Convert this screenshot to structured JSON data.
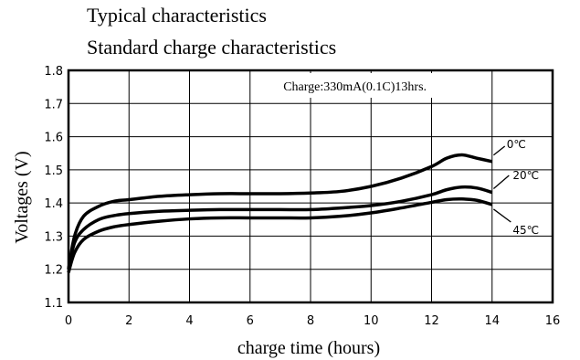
{
  "header": {
    "line1": "Typical characteristics",
    "line2": "Standard charge characteristics"
  },
  "chart_data": {
    "type": "line",
    "xlabel": "charge time (hours)",
    "ylabel": "Voltages (V)",
    "xlim": [
      0,
      16
    ],
    "ylim": [
      1.1,
      1.8
    ],
    "xticks": [
      0,
      2,
      4,
      6,
      8,
      10,
      12,
      14,
      16
    ],
    "yticks": [
      1.1,
      1.2,
      1.3,
      1.4,
      1.5,
      1.6,
      1.7,
      1.8
    ],
    "ytick_labels": [
      "1.1",
      "1.2",
      "1.3",
      "1.4",
      "1.5",
      "1.6",
      "1.7",
      "1.8"
    ],
    "xtick_labels": [
      "0",
      "2",
      "4",
      "6",
      "8",
      "10",
      "12",
      "14",
      "16"
    ],
    "grid": true,
    "annotation": "Charge:330mA(0.1C)13hrs.",
    "series": [
      {
        "name": "0℃",
        "x": [
          0,
          0.2,
          0.5,
          1,
          1.5,
          2,
          3,
          4,
          5,
          6,
          7,
          8,
          9,
          10,
          11,
          12,
          12.5,
          13,
          13.5,
          14
        ],
        "y": [
          1.2,
          1.3,
          1.36,
          1.39,
          1.405,
          1.41,
          1.42,
          1.425,
          1.428,
          1.428,
          1.428,
          1.43,
          1.435,
          1.45,
          1.475,
          1.51,
          1.535,
          1.545,
          1.535,
          1.525
        ]
      },
      {
        "name": "20℃",
        "x": [
          0,
          0.2,
          0.5,
          1,
          1.5,
          2,
          3,
          4,
          5,
          6,
          7,
          8,
          9,
          10,
          11,
          12,
          12.5,
          13,
          13.5,
          14
        ],
        "y": [
          1.2,
          1.28,
          1.32,
          1.35,
          1.362,
          1.368,
          1.375,
          1.378,
          1.38,
          1.38,
          1.38,
          1.38,
          1.385,
          1.392,
          1.405,
          1.425,
          1.44,
          1.448,
          1.445,
          1.432
        ]
      },
      {
        "name": "45℃",
        "x": [
          0,
          0.2,
          0.5,
          1,
          1.5,
          2,
          3,
          4,
          5,
          6,
          7,
          8,
          9,
          10,
          11,
          12,
          12.5,
          13,
          13.5,
          14
        ],
        "y": [
          1.19,
          1.25,
          1.29,
          1.315,
          1.328,
          1.335,
          1.345,
          1.352,
          1.355,
          1.355,
          1.355,
          1.355,
          1.36,
          1.37,
          1.385,
          1.402,
          1.41,
          1.412,
          1.408,
          1.395
        ]
      }
    ],
    "series_label_color": "#000000",
    "line_color": "#000000"
  }
}
